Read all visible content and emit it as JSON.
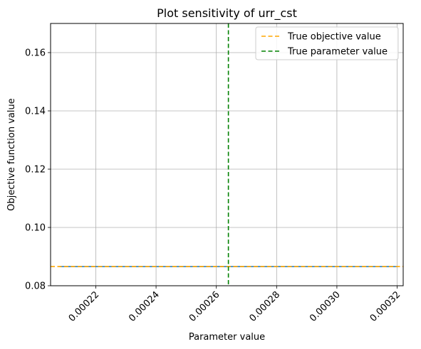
{
  "chart_data": {
    "type": "line",
    "title": "Plot sensitivity of urr_cst",
    "xlabel": "Parameter value",
    "ylabel": "Objective function value",
    "xlim": [
      0.000205,
      0.000322
    ],
    "ylim": [
      0.08,
      0.17
    ],
    "xticks": [
      {
        "value": 0.00022,
        "label": "0.00022"
      },
      {
        "value": 0.00024,
        "label": "0.00024"
      },
      {
        "value": 0.00026,
        "label": "0.00026"
      },
      {
        "value": 0.00028,
        "label": "0.00028"
      },
      {
        "value": 0.0003,
        "label": "0.00030"
      },
      {
        "value": 0.00032,
        "label": "0.00032"
      }
    ],
    "yticks": [
      {
        "value": 0.08,
        "label": "0.08"
      },
      {
        "value": 0.1,
        "label": "0.10"
      },
      {
        "value": 0.12,
        "label": "0.12"
      },
      {
        "value": 0.14,
        "label": "0.14"
      },
      {
        "value": 0.16,
        "label": "0.16"
      }
    ],
    "grid": true,
    "legend_position": "top-right",
    "series": [
      {
        "color": "#1f77b4",
        "x": [
          0.000208,
          0.000215,
          0.000222,
          0.000229,
          0.000236,
          0.000243,
          0.00025,
          0.000257,
          0.000264,
          0.000271,
          0.000278,
          0.000285,
          0.000292,
          0.000299,
          0.000306,
          0.000313,
          0.00032
        ],
        "y": [
          0.0866,
          0.0866,
          0.0866,
          0.0866,
          0.0866,
          0.0866,
          0.0866,
          0.0866,
          0.0866,
          0.0866,
          0.0866,
          0.0866,
          0.0866,
          0.0866,
          0.0866,
          0.0866,
          0.0866
        ]
      }
    ],
    "reference_lines": [
      {
        "orientation": "horizontal",
        "value": 0.0866,
        "name": "True objective value",
        "color": "#ffa500",
        "style": "dashed"
      },
      {
        "orientation": "vertical",
        "value": 0.000264,
        "name": "True parameter value",
        "color": "#008000",
        "style": "dashed"
      }
    ]
  }
}
